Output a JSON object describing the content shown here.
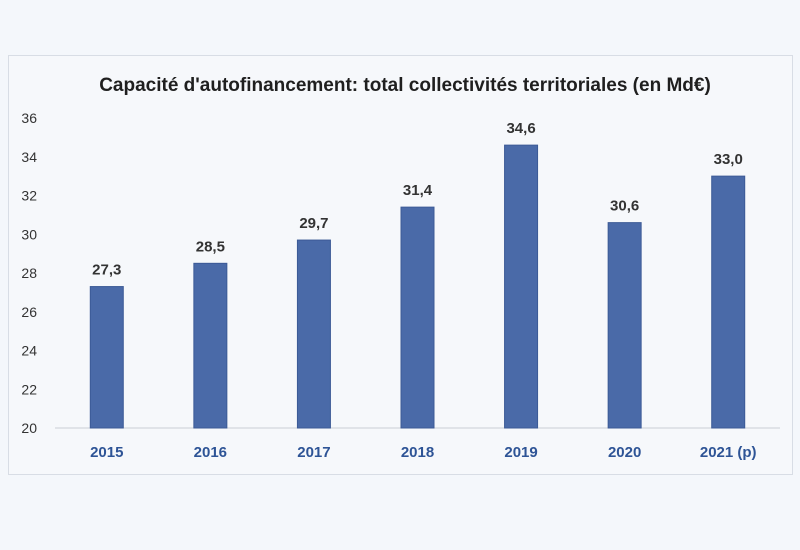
{
  "chart_data": {
    "type": "bar",
    "title": "Capacité d'autofinancement: total collectivités territoriales (en Md€)",
    "categories": [
      "2015",
      "2016",
      "2017",
      "2018",
      "2019",
      "2020",
      "2021 (p)"
    ],
    "values": [
      27.3,
      28.5,
      29.7,
      31.4,
      34.6,
      30.6,
      33.0
    ],
    "data_labels": [
      "27,3",
      "28,5",
      "29,7",
      "31,4",
      "34,6",
      "30,6",
      "33,0"
    ],
    "y_ticks": [
      "20",
      "22",
      "24",
      "26",
      "28",
      "30",
      "32",
      "34",
      "36"
    ],
    "xlabel": "",
    "ylabel": "",
    "ylim": [
      20,
      36
    ],
    "grid": false,
    "legend": "none",
    "colors": {
      "bar": "#4a6aa8",
      "bar_edge": "#3c5a96",
      "xtick": "#2e5496"
    }
  }
}
